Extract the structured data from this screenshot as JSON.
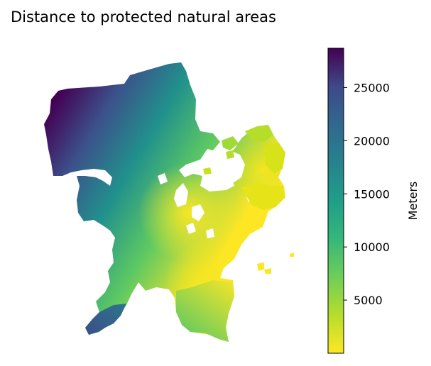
{
  "figure": {
    "title": "Distance to protected natural areas"
  },
  "colorbar": {
    "label": "Meters",
    "colormap": "viridis_r",
    "range": [
      0,
      28700
    ],
    "ticks": [
      {
        "value": 5000,
        "label": "5000"
      },
      {
        "value": 10000,
        "label": "10000"
      },
      {
        "value": 15000,
        "label": "15000"
      },
      {
        "value": 20000,
        "label": "20000"
      },
      {
        "value": 25000,
        "label": "25000"
      }
    ],
    "colors": {
      "low": "#f6e620",
      "mid_low": "#7ad151",
      "mid": "#22a884",
      "mid_high": "#2a788e",
      "high_mid": "#414487",
      "high": "#440154"
    }
  },
  "map": {
    "description_values": {
      "min_distance_m": 0,
      "max_distance_m": 28700
    }
  }
}
